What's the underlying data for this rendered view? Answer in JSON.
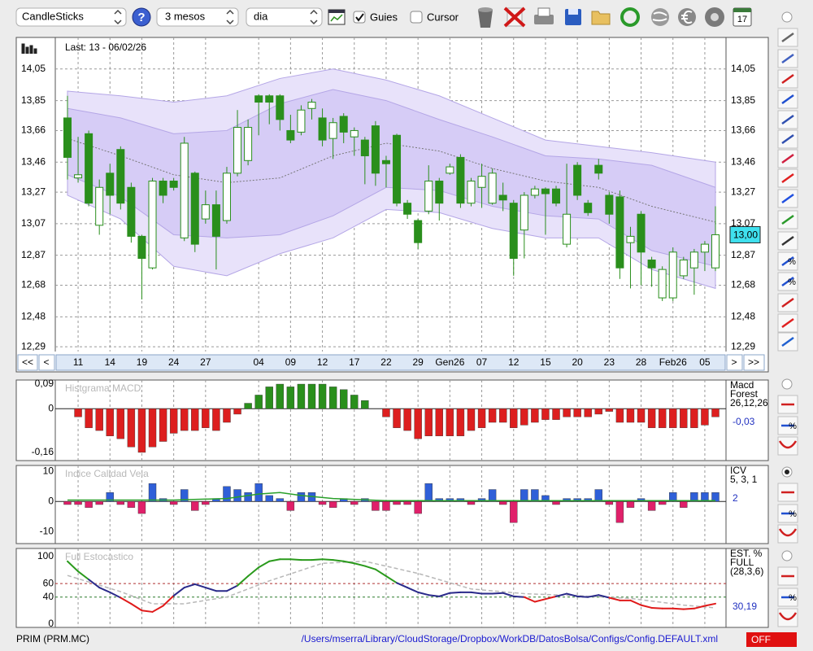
{
  "toolbar": {
    "chart_type": "CandleSticks",
    "help": "?",
    "period": "3 mesos",
    "interval": "dia",
    "guides": "Guies",
    "guides_checked": true,
    "cursor": "Cursor",
    "cursor_checked": false,
    "calendar_day": "17"
  },
  "side": {
    "percent": "%"
  },
  "nav": {
    "first": "<<",
    "prev": "<",
    "next": ">",
    "last": ">>"
  },
  "status": {
    "symbol": "PRIM (PRM.MC)",
    "config_path": "/Users/mserra/Library/CloudStorage/Dropbox/WorkDB/DatosBolsa/Configs/Config.DEFAULT.xml",
    "mode": "OFF"
  },
  "chart_data": [
    {
      "type": "candlestick",
      "header": "Last: 13 - 06/02/26",
      "last_close_label": "13,00",
      "categories": [
        null,
        "11",
        null,
        null,
        "14",
        null,
        null,
        "19",
        null,
        null,
        "24",
        null,
        null,
        "27",
        null,
        null,
        null,
        null,
        "04",
        null,
        null,
        "09",
        null,
        null,
        "12",
        null,
        null,
        "17",
        null,
        null,
        "22",
        null,
        null,
        "29",
        null,
        null,
        "Gen26",
        null,
        null,
        "07",
        null,
        null,
        "12",
        null,
        null,
        "15",
        null,
        null,
        "20",
        null,
        null,
        "23",
        null,
        null,
        "28",
        null,
        null,
        "Feb26",
        null,
        null,
        "05",
        null
      ],
      "open": [
        13.74,
        13.36,
        13.64,
        13.06,
        13.39,
        13.54,
        13.3,
        12.99,
        12.79,
        13.34,
        13.34,
        12.98,
        13.39,
        13.1,
        13.19,
        13.09,
        13.39,
        13.47,
        13.88,
        13.88,
        13.88,
        13.66,
        13.65,
        13.8,
        13.74,
        13.61,
        13.75,
        13.62,
        13.6,
        13.69,
        13.47,
        13.63,
        13.2,
        13.09,
        13.15,
        13.34,
        13.39,
        13.49,
        13.2,
        13.3,
        13.2,
        13.25,
        13.2,
        13.03,
        13.25,
        13.29,
        13.29,
        12.94,
        13.44,
        13.2,
        13.44,
        13.25,
        13.24,
        12.95,
        13.13,
        12.84,
        12.6,
        12.6,
        12.74,
        12.79,
        12.89,
        12.79
      ],
      "high": [
        13.88,
        13.62,
        13.66,
        13.35,
        13.45,
        13.56,
        13.33,
        13.0,
        13.36,
        13.36,
        13.36,
        13.62,
        13.4,
        13.28,
        13.28,
        13.43,
        13.79,
        13.73,
        13.89,
        13.89,
        13.89,
        13.76,
        13.82,
        13.86,
        13.8,
        13.74,
        13.77,
        13.68,
        13.62,
        13.72,
        13.5,
        13.64,
        13.22,
        13.1,
        13.44,
        13.36,
        13.45,
        13.51,
        13.36,
        13.45,
        13.42,
        13.33,
        13.22,
        13.27,
        13.31,
        13.3,
        13.31,
        13.45,
        13.46,
        13.22,
        13.48,
        13.27,
        13.28,
        13.05,
        13.15,
        12.86,
        12.8,
        12.92,
        12.86,
        12.91,
        12.96,
        13.18
      ],
      "low": [
        13.35,
        13.33,
        13.18,
        13.0,
        13.13,
        13.16,
        12.95,
        12.59,
        12.78,
        13.2,
        13.28,
        12.96,
        12.89,
        13.07,
        12.78,
        13.07,
        13.37,
        13.44,
        13.63,
        13.7,
        13.66,
        13.58,
        13.63,
        13.73,
        13.56,
        13.48,
        13.58,
        13.5,
        13.32,
        13.31,
        13.3,
        13.18,
        13.1,
        12.91,
        13.13,
        13.09,
        13.38,
        13.17,
        13.18,
        13.17,
        13.19,
        13.15,
        12.74,
        12.85,
        13.23,
        13.0,
        13.18,
        12.92,
        13.22,
        13.12,
        13.35,
        13.07,
        12.72,
        12.66,
        12.68,
        12.67,
        12.58,
        12.58,
        12.72,
        12.62,
        12.77,
        12.77
      ],
      "close": [
        13.49,
        13.38,
        13.2,
        13.3,
        13.25,
        13.2,
        12.99,
        12.85,
        13.34,
        13.25,
        13.3,
        13.58,
        12.94,
        13.19,
        12.99,
        13.39,
        13.68,
        13.68,
        13.84,
        13.84,
        13.73,
        13.6,
        13.79,
        13.84,
        13.6,
        13.71,
        13.65,
        13.66,
        13.5,
        13.39,
        13.45,
        13.2,
        13.13,
        12.95,
        13.34,
        13.2,
        13.43,
        13.2,
        13.34,
        13.37,
        13.39,
        13.22,
        12.85,
        13.25,
        13.29,
        13.26,
        13.2,
        13.13,
        13.25,
        13.14,
        13.39,
        13.13,
        12.79,
        12.99,
        12.89,
        12.79,
        12.78,
        12.89,
        12.84,
        12.89,
        12.94,
        13.0
      ],
      "bands": {
        "x": [
          0,
          5,
          10,
          15,
          20,
          25,
          30,
          35,
          40,
          45,
          50,
          55,
          61
        ],
        "outer_upper": [
          13.91,
          13.88,
          13.84,
          13.88,
          13.99,
          14.05,
          13.98,
          13.88,
          13.74,
          13.6,
          13.56,
          13.52,
          13.46
        ],
        "inner_upper": [
          13.8,
          13.74,
          13.64,
          13.66,
          13.83,
          13.92,
          13.85,
          13.73,
          13.62,
          13.5,
          13.48,
          13.44,
          13.3
        ],
        "middle": [
          13.61,
          13.5,
          13.38,
          13.33,
          13.36,
          13.5,
          13.58,
          13.53,
          13.42,
          13.34,
          13.3,
          13.18,
          13.08
        ],
        "inner_lower": [
          13.38,
          13.24,
          13.0,
          12.98,
          13.0,
          13.12,
          13.3,
          13.28,
          13.18,
          13.12,
          13.1,
          12.9,
          12.8
        ],
        "outer_lower": [
          13.25,
          13.1,
          12.8,
          12.74,
          12.88,
          12.98,
          13.16,
          13.14,
          13.04,
          12.98,
          12.98,
          12.78,
          12.66
        ],
        "outer_color": "#e8e2fa",
        "inner_color": "#d6ccf6",
        "edge_color": "#b4a6e6",
        "middle_color": "#777777"
      },
      "up_color": "#ffffff",
      "down_color": "#2a8f1c",
      "grid": true,
      "ylim": [
        12.26,
        14.25
      ],
      "yticks": [
        {
          "value": 12.29,
          "label": "12,29"
        },
        {
          "value": 12.48,
          "label": "12,48"
        },
        {
          "value": 12.68,
          "label": "12,68"
        },
        {
          "value": 12.87,
          "label": "12,87"
        },
        {
          "value": 13.07,
          "label": "13,07"
        },
        {
          "value": 13.27,
          "label": "13,27"
        },
        {
          "value": 13.46,
          "label": "13,46"
        },
        {
          "value": 13.66,
          "label": "13,66"
        },
        {
          "value": 13.85,
          "label": "13,85"
        },
        {
          "value": 14.05,
          "label": "14,05"
        }
      ]
    },
    {
      "type": "bar",
      "title": "Histgrama MACD",
      "side_labels": [
        "Macd",
        "Forest",
        "26,12,26"
      ],
      "last_label": "-0,03",
      "values": [
        null,
        -0.03,
        -0.07,
        -0.08,
        -0.1,
        -0.11,
        -0.14,
        -0.16,
        -0.14,
        -0.12,
        -0.09,
        -0.08,
        -0.08,
        -0.07,
        -0.08,
        -0.05,
        -0.02,
        0.02,
        0.05,
        0.08,
        0.09,
        0.08,
        0.09,
        0.09,
        0.09,
        0.08,
        0.07,
        0.05,
        0.03,
        0,
        -0.03,
        -0.07,
        -0.08,
        -0.11,
        -0.1,
        -0.1,
        -0.1,
        -0.1,
        -0.08,
        -0.07,
        -0.05,
        -0.05,
        -0.07,
        -0.06,
        -0.05,
        -0.04,
        -0.04,
        -0.03,
        -0.03,
        -0.03,
        -0.02,
        -0.01,
        -0.05,
        -0.05,
        -0.05,
        -0.07,
        -0.07,
        -0.07,
        -0.07,
        -0.07,
        -0.06,
        -0.03
      ],
      "pos_color": "#2a8f1c",
      "neg_color": "#dd1f1f",
      "ylim": [
        -0.19,
        0.105
      ],
      "yticks": [
        {
          "value": 0.09,
          "label": "0,09"
        },
        0,
        {
          "value": -0.16,
          "label": "-0,16"
        }
      ]
    },
    {
      "type": "bar",
      "title": "Indice Calidad Vela",
      "side_labels": [
        "ICV",
        "5, 3, 1"
      ],
      "last_label": 2,
      "values": [
        -1,
        -1,
        -2,
        -1,
        3,
        -1,
        -2,
        -4,
        6,
        1,
        -1,
        4,
        -3,
        -1,
        1,
        5,
        4,
        3,
        6,
        2,
        1,
        -3,
        3,
        3,
        -1,
        -2,
        1,
        -1,
        1,
        -3,
        -3,
        -1,
        -1,
        -4,
        6,
        1,
        1,
        1,
        -1,
        1,
        4,
        -1,
        -7,
        4,
        4,
        2,
        -1,
        1,
        1,
        1,
        4,
        -1,
        -7,
        -2,
        1,
        -3,
        -1,
        3,
        -2,
        3,
        3,
        3
      ],
      "pos_color": "#2f5fd8",
      "neg_color": "#e0206a",
      "signal": {
        "x": [
          0,
          10,
          15,
          18,
          20,
          22,
          25,
          30,
          61
        ],
        "values": [
          0.5,
          0.5,
          1,
          2.5,
          3,
          2,
          1,
          0.3,
          0.3
        ],
        "color": "#2aa02a"
      },
      "ylim": [
        -14,
        12
      ],
      "yticks": [
        10,
        0,
        -10
      ]
    },
    {
      "type": "line",
      "title": "Full Estocastico",
      "side_labels": [
        "EST. %",
        "FULL",
        "(28,3,6)"
      ],
      "last_label": "30,19",
      "values": [
        93,
        78,
        66,
        54,
        47,
        39,
        30,
        20,
        18,
        27,
        42,
        54,
        59,
        54,
        49,
        49,
        57,
        71,
        84,
        93,
        96,
        96,
        95,
        95,
        96,
        95,
        93,
        90,
        86,
        81,
        71,
        61,
        54,
        47,
        43,
        41,
        46,
        47,
        47,
        45,
        45,
        46,
        41,
        40,
        33,
        37,
        41,
        45,
        41,
        40,
        43,
        39,
        35,
        35,
        28,
        24,
        23,
        23,
        22,
        23,
        27,
        30.19
      ],
      "high_color": "#2a9a1c",
      "mid_color": "#2a2a8a",
      "low_color": "#e01a1a",
      "signal": {
        "x": [
          0,
          5,
          8,
          11,
          15,
          19,
          24,
          28,
          33,
          38,
          43,
          48,
          53,
          58,
          61
        ],
        "values": [
          72,
          48,
          30,
          30,
          40,
          64,
          90,
          93,
          75,
          52,
          45,
          42,
          38,
          28,
          24
        ],
        "color": "#b8b8b8"
      },
      "ref_lines": [
        {
          "value": 60,
          "color": "#b03030"
        },
        {
          "value": 40,
          "color": "#2a7a2a"
        }
      ],
      "ylim": [
        -5,
        112
      ],
      "yticks": [
        100,
        60,
        40,
        0
      ]
    }
  ]
}
